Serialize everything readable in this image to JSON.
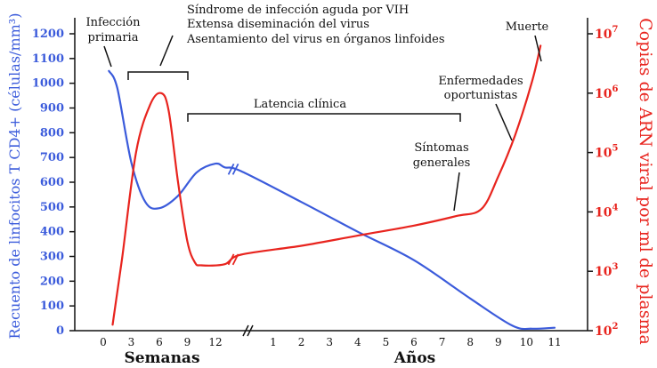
{
  "chart_data": {
    "type": "line",
    "title": "",
    "left_axis": {
      "label": "Recuento de linfocitos T CD4+ (células/mm³)",
      "ticks": [
        0,
        100,
        200,
        300,
        400,
        500,
        600,
        700,
        800,
        900,
        1000,
        1100,
        1200
      ],
      "range": [
        0,
        1200
      ],
      "color": "#3b5bdb"
    },
    "right_axis": {
      "label": "Copias de ARN viral por ml de plasma",
      "ticks": [
        {
          "base": "10",
          "exp": "2",
          "log": 2
        },
        {
          "base": "10",
          "exp": "3",
          "log": 3
        },
        {
          "base": "10",
          "exp": "4",
          "log": 4
        },
        {
          "base": "10",
          "exp": "5",
          "log": 5
        },
        {
          "base": "10",
          "exp": "6",
          "log": 6
        },
        {
          "base": "10",
          "exp": "7",
          "log": 7
        }
      ],
      "range_log10": [
        2,
        7
      ],
      "color": "#e8241e"
    },
    "x_axis": {
      "weeks_label": "Semanas",
      "years_label": "Años",
      "weeks_ticks": [
        0,
        3,
        6,
        9,
        12
      ],
      "years_ticks": [
        1,
        2,
        3,
        4,
        5,
        6,
        7,
        8,
        9,
        10,
        11
      ]
    },
    "series": [
      {
        "name": "Linfocitos T CD4+",
        "axis": "left",
        "color": "#3b5bdb",
        "points": [
          {
            "seg": "w",
            "x": 0.6,
            "y": 1050
          },
          {
            "seg": "w",
            "x": 1.5,
            "y": 980
          },
          {
            "seg": "w",
            "x": 3.0,
            "y": 680
          },
          {
            "seg": "w",
            "x": 4.5,
            "y": 520
          },
          {
            "seg": "w",
            "x": 6.0,
            "y": 495
          },
          {
            "seg": "w",
            "x": 8.0,
            "y": 545
          },
          {
            "seg": "w",
            "x": 10.0,
            "y": 640
          },
          {
            "seg": "w",
            "x": 12.0,
            "y": 675
          },
          {
            "seg": "w",
            "x": 13.0,
            "y": 660
          },
          {
            "seg": "y",
            "x": -0.15,
            "y": 645
          },
          {
            "seg": "y",
            "x": 2.0,
            "y": 520
          },
          {
            "seg": "y",
            "x": 4.0,
            "y": 400
          },
          {
            "seg": "y",
            "x": 6.0,
            "y": 285
          },
          {
            "seg": "y",
            "x": 8.0,
            "y": 130
          },
          {
            "seg": "y",
            "x": 9.5,
            "y": 20
          },
          {
            "seg": "y",
            "x": 10.2,
            "y": 8
          },
          {
            "seg": "y",
            "x": 11.0,
            "y": 12
          }
        ]
      },
      {
        "name": "Copias de ARN viral",
        "axis": "right",
        "color": "#e8241e",
        "points": [
          {
            "seg": "w",
            "x": 1.0,
            "y": 2.1
          },
          {
            "seg": "w",
            "x": 2.0,
            "y": 3.2
          },
          {
            "seg": "w",
            "x": 3.5,
            "y": 5.0
          },
          {
            "seg": "w",
            "x": 5.0,
            "y": 5.8
          },
          {
            "seg": "w",
            "x": 6.2,
            "y": 6.0
          },
          {
            "seg": "w",
            "x": 7.0,
            "y": 5.7
          },
          {
            "seg": "w",
            "x": 8.0,
            "y": 4.5
          },
          {
            "seg": "w",
            "x": 9.0,
            "y": 3.5
          },
          {
            "seg": "w",
            "x": 9.8,
            "y": 3.15
          },
          {
            "seg": "w",
            "x": 10.5,
            "y": 3.1
          },
          {
            "seg": "w",
            "x": 13.0,
            "y": 3.12
          },
          {
            "seg": "y",
            "x": -0.15,
            "y": 3.28
          },
          {
            "seg": "y",
            "x": 2.0,
            "y": 3.43
          },
          {
            "seg": "y",
            "x": 4.0,
            "y": 3.6
          },
          {
            "seg": "y",
            "x": 6.0,
            "y": 3.77
          },
          {
            "seg": "y",
            "x": 7.5,
            "y": 3.93
          },
          {
            "seg": "y",
            "x": 8.4,
            "y": 4.05
          },
          {
            "seg": "y",
            "x": 9.0,
            "y": 4.6
          },
          {
            "seg": "y",
            "x": 9.6,
            "y": 5.3
          },
          {
            "seg": "y",
            "x": 10.2,
            "y": 6.2
          },
          {
            "seg": "y",
            "x": 10.5,
            "y": 6.8
          }
        ]
      }
    ],
    "annotations": [
      {
        "id": "infeccion",
        "lines": [
          "Infección",
          "primaria"
        ]
      },
      {
        "id": "sindrome",
        "lines": [
          "Síndrome de infección aguda por VIH",
          "Extensa diseminación del virus",
          "Asentamiento del virus en órganos linfoides"
        ]
      },
      {
        "id": "latencia",
        "lines": [
          "Latencia clínica"
        ]
      },
      {
        "id": "sintomas",
        "lines": [
          "Síntomas",
          "generales"
        ]
      },
      {
        "id": "enfermedades",
        "lines": [
          "Enfermedades",
          "oportunistas"
        ]
      },
      {
        "id": "muerte",
        "lines": [
          "Muerte"
        ]
      }
    ]
  }
}
